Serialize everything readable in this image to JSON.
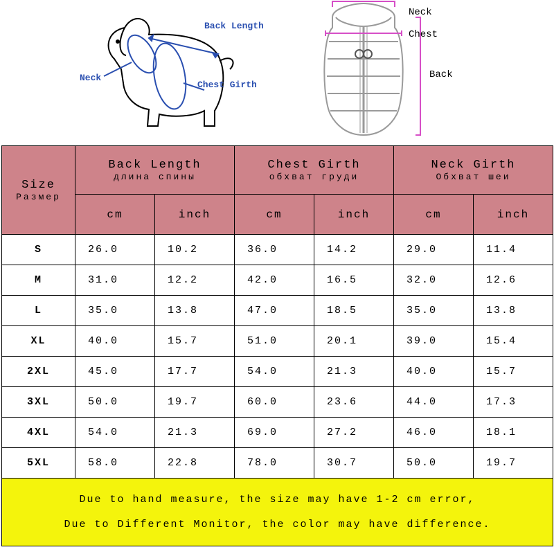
{
  "diagram": {
    "dog_labels": {
      "neck": "Neck",
      "back": "Back Length",
      "chest": "Chest Girth"
    },
    "vest_labels": {
      "neck": "Neck",
      "chest": "Chest",
      "back": "Back"
    },
    "dog_outline_color": "#000000",
    "dog_label_color": "#2a4fb0",
    "dog_ellipse_color": "#2a4fb0",
    "vest_outline_color": "#9a9a9a",
    "vest_measure_color": "#d64fc7"
  },
  "table": {
    "header_bg": "#ce838a",
    "border_color": "#000000",
    "note_bg": "#f4f40c",
    "size_header": {
      "main": "Size",
      "sub": "Размер"
    },
    "groups": [
      {
        "main": "Back Length",
        "sub": "длина спины"
      },
      {
        "main": "Chest Girth",
        "sub": "обхват груди"
      },
      {
        "main": "Neck Girth",
        "sub": "Обхват шеи"
      }
    ],
    "unit_cm": "cm",
    "unit_inch": "inch",
    "rows": [
      {
        "size": "S",
        "v": [
          "26.0",
          "10.2",
          "36.0",
          "14.2",
          "29.0",
          "11.4"
        ]
      },
      {
        "size": "M",
        "v": [
          "31.0",
          "12.2",
          "42.0",
          "16.5",
          "32.0",
          "12.6"
        ]
      },
      {
        "size": "L",
        "v": [
          "35.0",
          "13.8",
          "47.0",
          "18.5",
          "35.0",
          "13.8"
        ]
      },
      {
        "size": "XL",
        "v": [
          "40.0",
          "15.7",
          "51.0",
          "20.1",
          "39.0",
          "15.4"
        ]
      },
      {
        "size": "2XL",
        "v": [
          "45.0",
          "17.7",
          "54.0",
          "21.3",
          "40.0",
          "15.7"
        ]
      },
      {
        "size": "3XL",
        "v": [
          "50.0",
          "19.7",
          "60.0",
          "23.6",
          "44.0",
          "17.3"
        ]
      },
      {
        "size": "4XL",
        "v": [
          "54.0",
          "21.3",
          "69.0",
          "27.2",
          "46.0",
          "18.1"
        ]
      },
      {
        "size": "5XL",
        "v": [
          "58.0",
          "22.8",
          "78.0",
          "30.7",
          "50.0",
          "19.7"
        ]
      }
    ],
    "note_line1": "Due to hand measure, the size may have 1-2 cm error,",
    "note_line2": "Due to Different Monitor, the color may have difference."
  }
}
